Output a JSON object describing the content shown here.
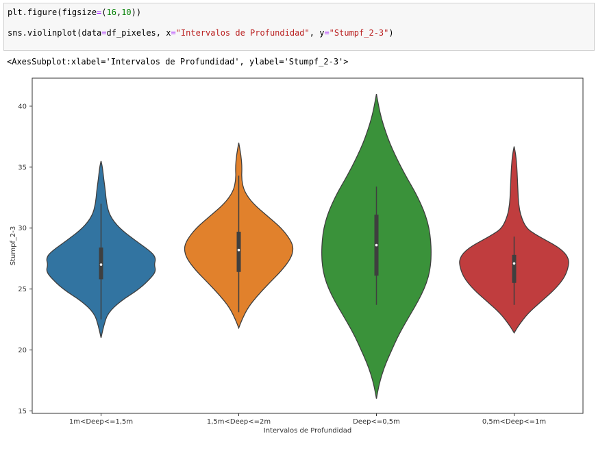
{
  "cell": {
    "line1": {
      "fn": "plt.figure(figsize",
      "eq": "=",
      "paren_open": "(",
      "num1": "16",
      "comma": ",",
      "num2": "10",
      "paren_close": "))"
    },
    "line2": {
      "p1": "sns.violinplot(data",
      "eq1": "=",
      "p2": "df_pixeles, x",
      "eq2": "=",
      "s1": "\"Intervalos de Profundidad\"",
      "p3": ", y",
      "eq3": "=",
      "s2": "\"Stumpf_2-3\"",
      "p4": ")"
    }
  },
  "output_text": "<AxesSubplot:xlabel='Intervalos de Profundidad', ylabel='Stumpf_2-3'>",
  "chart_data": {
    "type": "violin",
    "xlabel": "Intervalos de Profundidad",
    "ylabel": "Stumpf_2-3",
    "ylim": [
      14.8,
      42.3
    ],
    "yticks": [
      15,
      20,
      25,
      30,
      35,
      40
    ],
    "grid": false,
    "categories": [
      "1m<Deep<=1,5m",
      "1,5m<Deep<=2m",
      "Deep<=0,5m",
      "0,5m<Deep<=1m"
    ],
    "colors": [
      "#3274a1",
      "#e1812c",
      "#3a923a",
      "#c03d3e"
    ],
    "violins": [
      {
        "category": "1m<Deep<=1,5m",
        "min": 21.0,
        "max": 35.5,
        "q1": 25.8,
        "median": 27.0,
        "q3": 28.4,
        "whisker_low": 22.5,
        "whisker_high": 32.0,
        "profile": [
          [
            21.0,
            0.0
          ],
          [
            22.0,
            0.05
          ],
          [
            23.0,
            0.12
          ],
          [
            24.0,
            0.35
          ],
          [
            25.0,
            0.7
          ],
          [
            26.0,
            0.93
          ],
          [
            26.5,
            1.0
          ],
          [
            27.0,
            0.97
          ],
          [
            27.5,
            1.0
          ],
          [
            28.0,
            0.93
          ],
          [
            29.0,
            0.62
          ],
          [
            30.0,
            0.33
          ],
          [
            31.0,
            0.16
          ],
          [
            32.0,
            0.1
          ],
          [
            33.0,
            0.08
          ],
          [
            34.0,
            0.05
          ],
          [
            35.0,
            0.025
          ],
          [
            35.5,
            0.0
          ]
        ]
      },
      {
        "category": "1,5m<Deep<=2m",
        "min": 21.8,
        "max": 37.0,
        "q1": 26.4,
        "median": 28.2,
        "q3": 29.7,
        "whisker_low": 23.1,
        "whisker_high": 34.3,
        "profile": [
          [
            21.8,
            0.0
          ],
          [
            22.5,
            0.06
          ],
          [
            23.5,
            0.17
          ],
          [
            24.5,
            0.35
          ],
          [
            25.5,
            0.56
          ],
          [
            26.5,
            0.78
          ],
          [
            27.5,
            0.95
          ],
          [
            28.3,
            1.0
          ],
          [
            29.0,
            0.95
          ],
          [
            30.0,
            0.78
          ],
          [
            31.0,
            0.52
          ],
          [
            32.0,
            0.26
          ],
          [
            33.0,
            0.1
          ],
          [
            34.0,
            0.05
          ],
          [
            35.0,
            0.06
          ],
          [
            36.0,
            0.04
          ],
          [
            37.0,
            0.0
          ]
        ]
      },
      {
        "category": "Deep<=0,5m",
        "min": 16.0,
        "max": 41.0,
        "q1": 26.1,
        "median": 28.6,
        "q3": 31.1,
        "whisker_low": 23.7,
        "whisker_high": 33.4,
        "profile": [
          [
            16.0,
            0.0
          ],
          [
            17.0,
            0.04
          ],
          [
            18.0,
            0.1
          ],
          [
            19.0,
            0.18
          ],
          [
            20.0,
            0.28
          ],
          [
            21.0,
            0.38
          ],
          [
            22.0,
            0.5
          ],
          [
            23.0,
            0.63
          ],
          [
            24.0,
            0.76
          ],
          [
            25.0,
            0.87
          ],
          [
            26.0,
            0.95
          ],
          [
            27.0,
            0.99
          ],
          [
            28.0,
            1.0
          ],
          [
            29.0,
            0.99
          ],
          [
            30.0,
            0.96
          ],
          [
            31.0,
            0.9
          ],
          [
            32.0,
            0.81
          ],
          [
            33.0,
            0.7
          ],
          [
            34.0,
            0.57
          ],
          [
            35.0,
            0.45
          ],
          [
            36.0,
            0.34
          ],
          [
            37.0,
            0.24
          ],
          [
            38.0,
            0.16
          ],
          [
            39.0,
            0.09
          ],
          [
            40.0,
            0.04
          ],
          [
            41.0,
            0.0
          ]
        ]
      },
      {
        "category": "0,5m<Deep<=1m",
        "min": 21.4,
        "max": 36.7,
        "q1": 25.5,
        "median": 27.1,
        "q3": 27.8,
        "whisker_low": 23.7,
        "whisker_high": 29.3,
        "profile": [
          [
            21.4,
            0.0
          ],
          [
            22.0,
            0.08
          ],
          [
            23.0,
            0.25
          ],
          [
            24.0,
            0.5
          ],
          [
            25.0,
            0.75
          ],
          [
            26.0,
            0.93
          ],
          [
            27.0,
            1.0
          ],
          [
            27.5,
            0.99
          ],
          [
            28.0,
            0.92
          ],
          [
            28.5,
            0.78
          ],
          [
            29.0,
            0.58
          ],
          [
            29.5,
            0.38
          ],
          [
            30.0,
            0.22
          ],
          [
            31.0,
            0.12
          ],
          [
            32.0,
            0.08
          ],
          [
            33.0,
            0.07
          ],
          [
            34.0,
            0.06
          ],
          [
            35.0,
            0.05
          ],
          [
            36.0,
            0.03
          ],
          [
            36.7,
            0.0
          ]
        ]
      }
    ]
  }
}
